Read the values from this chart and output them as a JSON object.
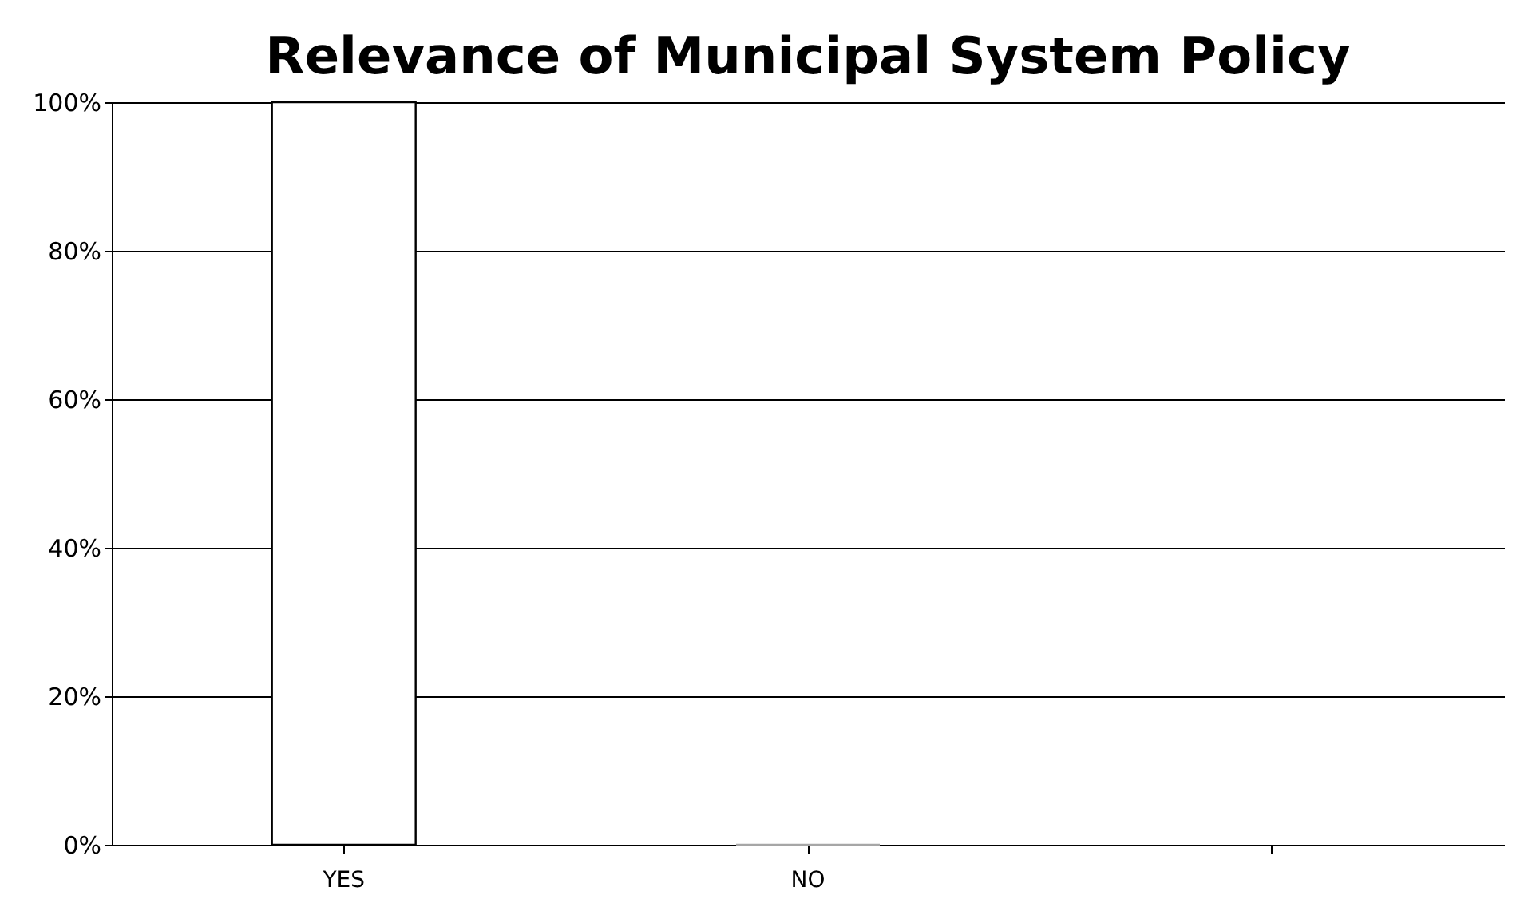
{
  "chart_data": {
    "type": "bar",
    "title": "Relevance of Municipal System Policy",
    "categories": [
      "YES",
      "NO",
      null
    ],
    "values": [
      100,
      0,
      null
    ],
    "colors": [
      "#ffffff",
      "#a6a6a6",
      null
    ],
    "ylim": [
      0,
      100
    ],
    "yticks": [
      {
        "value": 0,
        "label": "0%"
      },
      {
        "value": 20,
        "label": "20%"
      },
      {
        "value": 40,
        "label": "40%"
      },
      {
        "value": 60,
        "label": "60%"
      },
      {
        "value": 80,
        "label": "80%"
      },
      {
        "value": 100,
        "label": "100%"
      }
    ],
    "grid": "y"
  }
}
